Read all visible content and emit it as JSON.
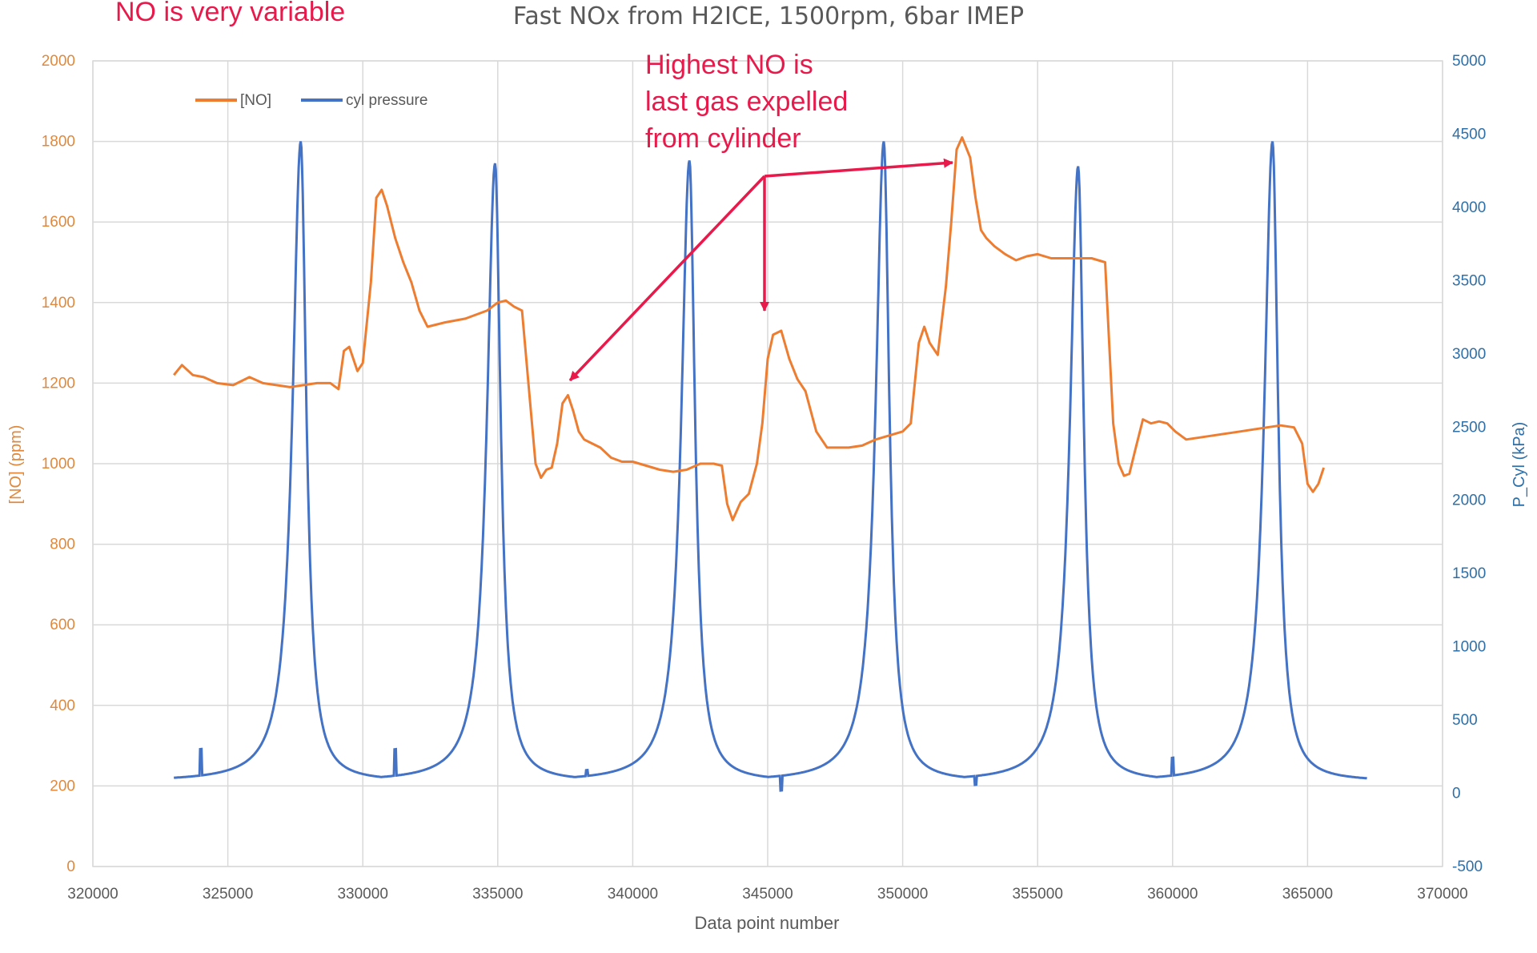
{
  "chart_data": {
    "type": "line",
    "title": "Fast NOx from H2ICE, 1500rpm, 6bar IMEP",
    "xlabel": "Data point number",
    "ylabel_left": "[NO] (ppm)",
    "ylabel_right": "P_Cyl (kPa)",
    "xlim": [
      320000,
      370000
    ],
    "xticks": [
      "320000",
      "325000",
      "330000",
      "335000",
      "340000",
      "345000",
      "350000",
      "355000",
      "360000",
      "365000",
      "370000"
    ],
    "ylim_left": [
      0,
      2000
    ],
    "yticks_left": [
      "0",
      "200",
      "400",
      "600",
      "800",
      "1000",
      "1200",
      "1400",
      "1600",
      "1800",
      "2000"
    ],
    "ylim_right": [
      -500,
      5000
    ],
    "yticks_right": [
      "-500",
      "0",
      "500",
      "1000",
      "1500",
      "2000",
      "2500",
      "3000",
      "3500",
      "4000",
      "4500",
      "5000"
    ],
    "grid": "vertical and horizontal",
    "legend_position": "top-left",
    "colors": {
      "no": "#ed7d31",
      "pressure": "#4472c4",
      "annotation": "#e8194b"
    },
    "series": [
      {
        "name": "[NO]",
        "axis": "left",
        "x": [
          323000,
          323300,
          323700,
          324100,
          324600,
          325200,
          325800,
          326300,
          326800,
          327300,
          327800,
          328300,
          328800,
          329100,
          329300,
          329500,
          329800,
          330000,
          330300,
          330500,
          330700,
          330900,
          331200,
          331500,
          331800,
          332100,
          332400,
          332700,
          333000,
          333400,
          333800,
          334200,
          334600,
          335000,
          335300,
          335600,
          335900,
          336200,
          336400,
          336600,
          336800,
          337000,
          337200,
          337400,
          337600,
          337800,
          338000,
          338200,
          338500,
          338800,
          339200,
          339600,
          340000,
          340500,
          341000,
          341500,
          342000,
          342500,
          343000,
          343300,
          343500,
          343700,
          344000,
          344300,
          344600,
          344800,
          345000,
          345200,
          345500,
          345800,
          346100,
          346400,
          346800,
          347200,
          347600,
          348000,
          348500,
          349000,
          349500,
          350000,
          350300,
          350600,
          350800,
          351000,
          351300,
          351600,
          351800,
          352000,
          352200,
          352500,
          352700,
          352900,
          353100,
          353400,
          353800,
          354200,
          354600,
          355000,
          355500,
          356000,
          356500,
          357000,
          357500,
          357800,
          358000,
          358200,
          358400,
          358600,
          358900,
          359200,
          359500,
          359800,
          360100,
          360500,
          361000,
          361500,
          362000,
          362500,
          363000,
          363500,
          364000,
          364500,
          364800,
          365000,
          365200,
          365400,
          365600
        ],
        "values": [
          1220,
          1245,
          1220,
          1215,
          1200,
          1195,
          1215,
          1200,
          1195,
          1190,
          1195,
          1200,
          1200,
          1185,
          1280,
          1290,
          1230,
          1250,
          1450,
          1660,
          1680,
          1640,
          1560,
          1500,
          1450,
          1380,
          1340,
          1345,
          1350,
          1355,
          1360,
          1370,
          1380,
          1400,
          1405,
          1390,
          1380,
          1150,
          1000,
          965,
          985,
          990,
          1050,
          1150,
          1170,
          1130,
          1080,
          1060,
          1050,
          1040,
          1015,
          1005,
          1005,
          995,
          985,
          980,
          985,
          1000,
          1000,
          995,
          900,
          860,
          905,
          925,
          1000,
          1100,
          1260,
          1320,
          1330,
          1260,
          1210,
          1180,
          1080,
          1040,
          1040,
          1040,
          1045,
          1060,
          1070,
          1080,
          1100,
          1300,
          1340,
          1300,
          1270,
          1440,
          1600,
          1780,
          1810,
          1760,
          1660,
          1580,
          1560,
          1540,
          1520,
          1505,
          1515,
          1520,
          1510,
          1510,
          1510,
          1510,
          1500,
          1100,
          1000,
          970,
          975,
          1030,
          1110,
          1100,
          1105,
          1100,
          1080,
          1060,
          1065,
          1070,
          1075,
          1080,
          1085,
          1090,
          1095,
          1090,
          1050,
          950,
          930,
          950,
          990
        ]
      },
      {
        "name": "cyl pressure",
        "axis": "right",
        "peaks": [
          {
            "x": 327700,
            "value": 4450
          },
          {
            "x": 334900,
            "value": 4300
          },
          {
            "x": 342100,
            "value": 4320
          },
          {
            "x": 349300,
            "value": 4450
          },
          {
            "x": 356500,
            "value": 4280
          },
          {
            "x": 363700,
            "value": 4450
          }
        ],
        "baseline": 80,
        "x_start": 323000,
        "x_end": 367200
      }
    ],
    "legend": [
      "[NO]",
      "cyl pressure"
    ]
  },
  "annotations": {
    "top_left": "NO is very variable",
    "peak_note_line1": "Highest NO is",
    "peak_note_line2": "last gas expelled",
    "peak_note_line3": "from cylinder"
  }
}
